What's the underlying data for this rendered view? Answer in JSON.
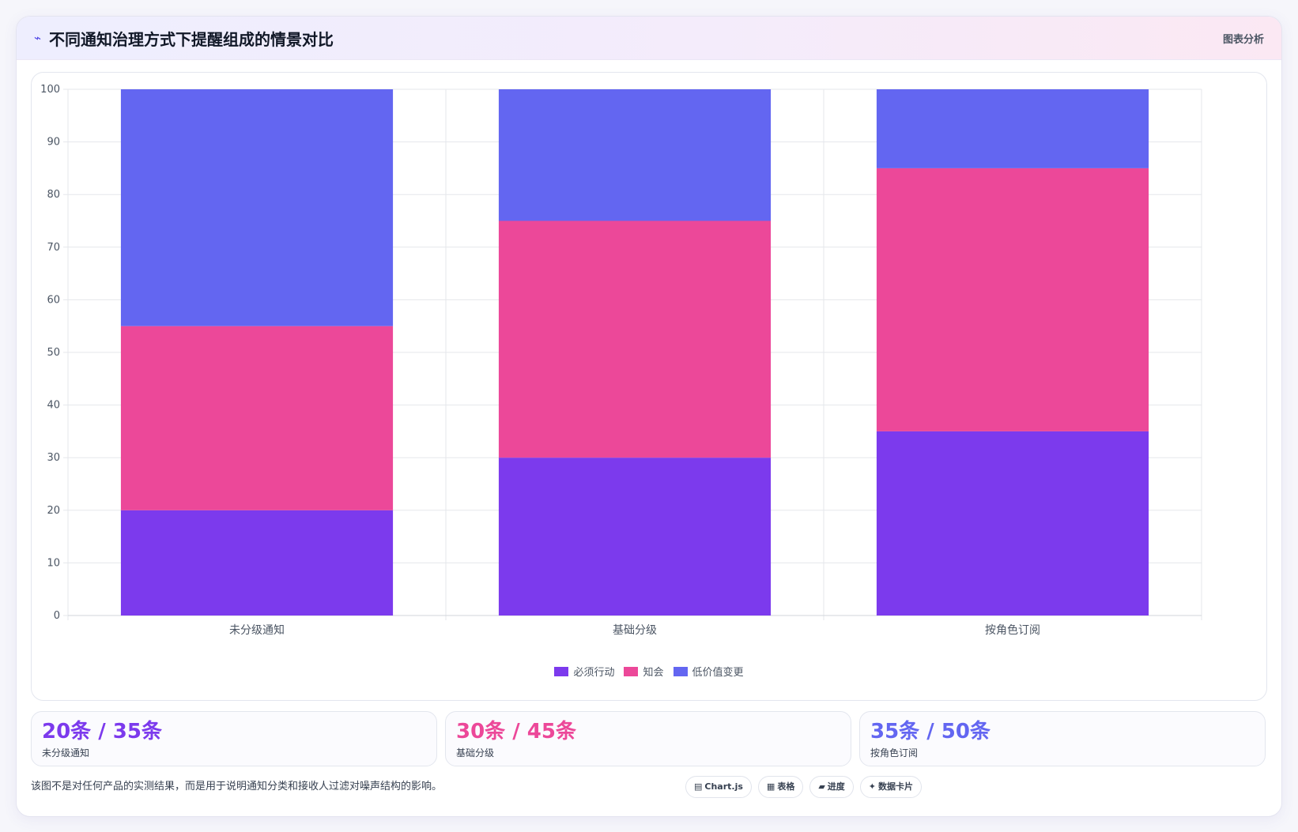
{
  "header": {
    "icon": "chart-line-icon",
    "title": "不同通知治理方式下提醒组成的情景对比",
    "tag": "图表分析"
  },
  "chart_data": {
    "type": "bar",
    "stacked": true,
    "categories": [
      "未分级通知",
      "基础分级",
      "按角色订阅"
    ],
    "series": [
      {
        "name": "必须行动",
        "color": "#7c3aed",
        "values": [
          20,
          30,
          35
        ]
      },
      {
        "name": "知会",
        "color": "#ec4899",
        "values": [
          35,
          45,
          50
        ]
      },
      {
        "name": "低价值变更",
        "color": "#6366f1",
        "values": [
          45,
          25,
          15
        ]
      }
    ],
    "ylim": [
      0,
      100
    ],
    "yticks": [
      0,
      10,
      20,
      30,
      40,
      50,
      60,
      70,
      80,
      90,
      100
    ],
    "grid": true,
    "legend": "bottom"
  },
  "stats": [
    {
      "value": "20条 / 35条",
      "label": "未分级通知",
      "color": "#7c3aed"
    },
    {
      "value": "30条 / 45条",
      "label": "基础分级",
      "color": "#ec4899"
    },
    {
      "value": "35条 / 50条",
      "label": "按角色订阅",
      "color": "#6366f1"
    }
  ],
  "footer": {
    "note": "该图不是对任何产品的实测结果，而是用于说明通知分类和接收人过滤对噪声结构的影响。",
    "chips": [
      {
        "icon": "▤",
        "label": "Chart.js"
      },
      {
        "icon": "▦",
        "label": "表格"
      },
      {
        "icon": "▰",
        "label": "进度"
      },
      {
        "icon": "✦",
        "label": "数据卡片"
      }
    ]
  }
}
